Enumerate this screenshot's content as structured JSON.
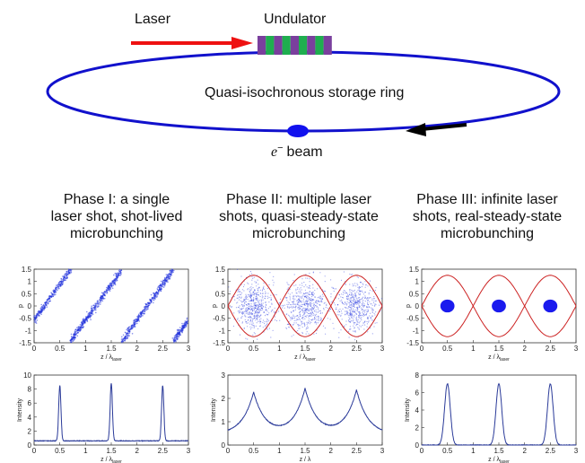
{
  "diagram": {
    "laser_label": "Laser",
    "undulator_label": "Undulator",
    "ring_label": "Quasi-isochronous storage ring",
    "beam_label_symbol": "e",
    "beam_label_superscript": "−",
    "beam_label_text": "beam",
    "colors": {
      "ring": "#1111cc",
      "laser_arrow": "#ee1111",
      "beam_arrow": "#000000",
      "undulator_purple": "#7a3f9d",
      "undulator_green": "#1fae4f",
      "scatter": "#2233dd",
      "separatrix": "#cc2222",
      "intensity": "#2a3a99"
    }
  },
  "phases": [
    {
      "lines": [
        "Phase I: a single",
        "laser shot, shot-lived",
        "microbunching"
      ]
    },
    {
      "lines": [
        "Phase II: multiple laser",
        "shots, quasi-steady-state",
        "microbunching"
      ]
    },
    {
      "lines": [
        "Phase III: infinite laser",
        "shots, real-steady-state",
        "microbunching"
      ]
    }
  ],
  "chart_data": [
    {
      "type": "scatter",
      "panel": "phase-1-phase-space",
      "xlabel": "z / λ_laser",
      "ylabel": "p",
      "xlim": [
        0,
        3
      ],
      "ylim": [
        -1.5,
        1.5
      ],
      "xticks": [
        "0",
        "0.5",
        "1",
        "1.5",
        "2",
        "2.5",
        "3"
      ],
      "yticks": [
        "1.5",
        "1",
        "0.5",
        "0",
        "-0.5",
        "-1",
        "-1.5"
      ],
      "description": "sawtooth filaments, p rises from -1.5 to 1.5 across each period, drops at z = 0.7, 1.7, 2.7"
    },
    {
      "type": "scatter",
      "panel": "phase-2-phase-space",
      "xlabel": "z / λ_laser",
      "ylabel": "p",
      "xlim": [
        0,
        3
      ],
      "ylim": [
        -1.5,
        1.5
      ],
      "xticks": [
        "0",
        "0.5",
        "1",
        "1.5",
        "2",
        "2.5",
        "3"
      ],
      "yticks": [
        "1.5",
        "1",
        "0.5",
        "0",
        "-0.5",
        "-1",
        "-1.5"
      ],
      "bucket_centers": [
        0.5,
        1.5,
        2.5
      ],
      "separatrix_amplitude": 1.25
    },
    {
      "type": "scatter",
      "panel": "phase-3-phase-space",
      "xlabel": "z / λ_laser",
      "ylabel": "p",
      "xlim": [
        0,
        3
      ],
      "ylim": [
        -1.5,
        1.5
      ],
      "xticks": [
        "0",
        "0.5",
        "1",
        "1.5",
        "2",
        "2.5",
        "3"
      ],
      "yticks": [
        "1.5",
        "1",
        "0.5",
        "0",
        "-0.5",
        "-1",
        "-1.5"
      ],
      "bucket_centers": [
        0.5,
        1.5,
        2.5
      ],
      "separatrix_amplitude": 1.25,
      "cluster_radius": 0.25
    },
    {
      "type": "line",
      "panel": "phase-1-intensity",
      "xlabel": "z / λ_laser",
      "ylabel": "Intensity",
      "xlim": [
        0,
        3
      ],
      "ylim": [
        0,
        10
      ],
      "xticks": [
        "0",
        "0.5",
        "1",
        "1.5",
        "2",
        "2.5",
        "3"
      ],
      "yticks": [
        "10",
        "8",
        "6",
        "4",
        "2",
        "0"
      ],
      "peaks": [
        {
          "x": 0.5,
          "y": 8.5
        },
        {
          "x": 1.5,
          "y": 8.8
        },
        {
          "x": 2.5,
          "y": 8.5
        }
      ],
      "baseline": 0.6
    },
    {
      "type": "line",
      "panel": "phase-2-intensity",
      "xlabel": "z / λ",
      "ylabel": "Intensity",
      "xlim": [
        0,
        3
      ],
      "ylim": [
        0,
        3
      ],
      "xticks": [
        "0",
        "0.5",
        "1",
        "1.5",
        "2",
        "2.5",
        "3"
      ],
      "yticks": [
        "3",
        "2",
        "1",
        "0"
      ],
      "peaks": [
        {
          "x": 0.5,
          "y": 2.25
        },
        {
          "x": 1.5,
          "y": 2.4
        },
        {
          "x": 2.5,
          "y": 2.35
        }
      ],
      "baseline": 0.45
    },
    {
      "type": "line",
      "panel": "phase-3-intensity",
      "xlabel": "z / λ_laser",
      "ylabel": "Intensity",
      "xlim": [
        0,
        3
      ],
      "ylim": [
        0,
        8
      ],
      "xticks": [
        "0",
        "0.5",
        "1",
        "1.5",
        "2",
        "2.5",
        "3"
      ],
      "yticks": [
        "8",
        "6",
        "4",
        "2",
        "0"
      ],
      "peaks": [
        {
          "x": 0.5,
          "y": 7.0
        },
        {
          "x": 1.5,
          "y": 7.0
        },
        {
          "x": 2.5,
          "y": 7.0
        }
      ],
      "baseline": 0.0
    }
  ]
}
